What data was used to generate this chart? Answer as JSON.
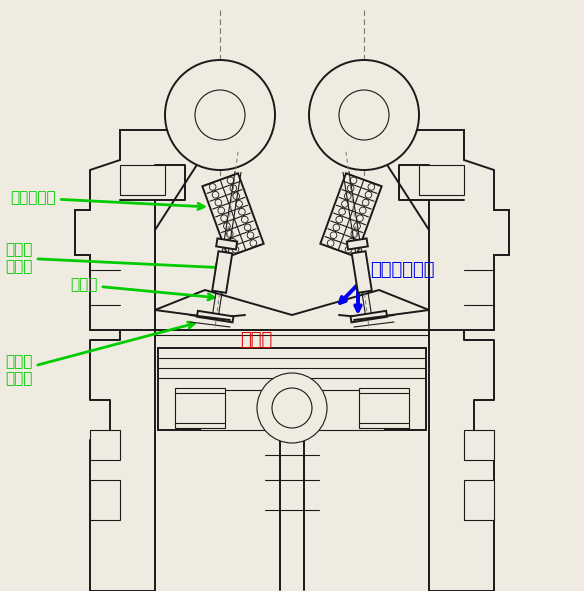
{
  "background_color": "#f0ebe0",
  "line_color": "#1a1a1a",
  "green_color": "#00cc00",
  "blue_color": "#0000ee",
  "red_color": "#dd0000",
  "figsize": [
    5.84,
    5.91
  ],
  "dpi": 100,
  "font_size_label": 11,
  "font_size_big": 13,
  "annotations": {
    "spring_text": "スプリング",
    "valve_guide_text": "バルブ\nガイド",
    "valve_text": "バルブ",
    "valve_seat_text": "バルブ\nシート",
    "combustion_text": "燃焼室",
    "oil_down_text": "オイル下がり"
  }
}
